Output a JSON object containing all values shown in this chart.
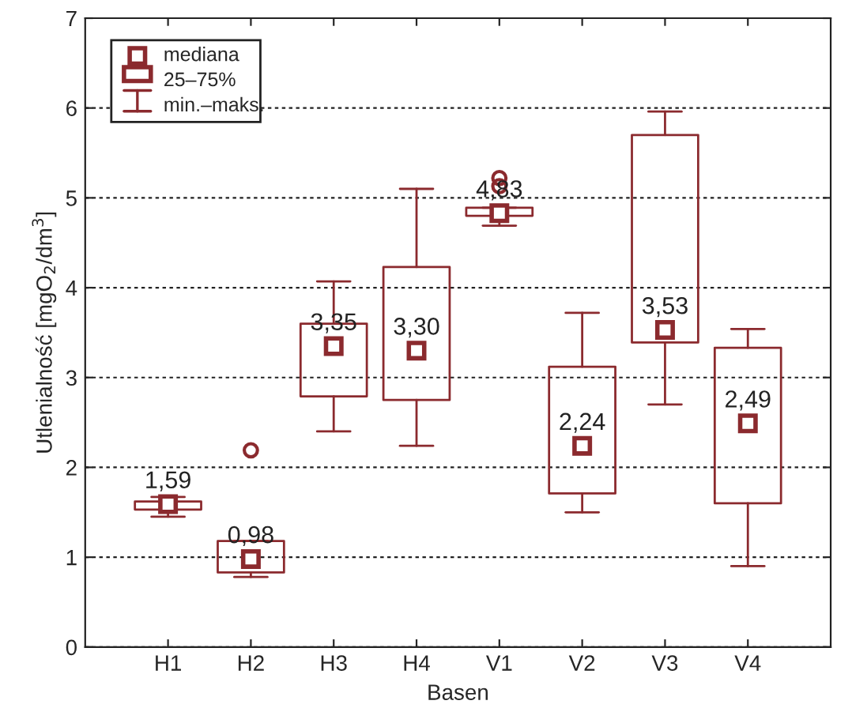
{
  "chart_data": {
    "type": "box",
    "xlabel": "Basen",
    "ylabel": "Utlenialność [mgO$_{2}$/dm$^{3}$]",
    "categories": [
      "H1",
      "H2",
      "H3",
      "H4",
      "V1",
      "V2",
      "V3",
      "V4"
    ],
    "color": "#8b2a2e",
    "boxes": [
      {
        "low": 1.45,
        "q1": 1.53,
        "median": 1.59,
        "q3": 1.62,
        "high": 1.67
      },
      {
        "low": 0.78,
        "q1": 0.83,
        "median": 0.98,
        "q3": 1.18,
        "high": 1.18,
        "outliers": [
          2.19
        ]
      },
      {
        "low": 2.4,
        "q1": 2.79,
        "median": 3.35,
        "q3": 3.6,
        "high": 4.07
      },
      {
        "low": 2.24,
        "q1": 2.75,
        "median": 3.3,
        "q3": 4.23,
        "high": 5.1
      },
      {
        "low": 4.69,
        "q1": 4.8,
        "median": 4.83,
        "q3": 4.89,
        "high": 4.89,
        "outliers": [
          5.13,
          5.22
        ]
      },
      {
        "low": 1.5,
        "q1": 1.71,
        "median": 2.24,
        "q3": 3.12,
        "high": 3.72
      },
      {
        "low": 2.7,
        "q1": 3.39,
        "median": 3.53,
        "q3": 5.7,
        "high": 5.96
      },
      {
        "low": 0.9,
        "q1": 1.6,
        "median": 2.49,
        "q3": 3.33,
        "high": 3.54
      }
    ],
    "value_labels": [
      "1,59",
      "0,98",
      "3,35",
      "3,30",
      "4,83",
      "2,24",
      "3,53",
      "2,49"
    ],
    "ylim": [
      0,
      7
    ],
    "yticks": [
      0,
      1,
      2,
      3,
      4,
      5,
      6,
      7
    ],
    "grid": "y",
    "marker": "square",
    "annotations": [
      "mediana",
      "25–75%",
      "min.–maks."
    ]
  }
}
